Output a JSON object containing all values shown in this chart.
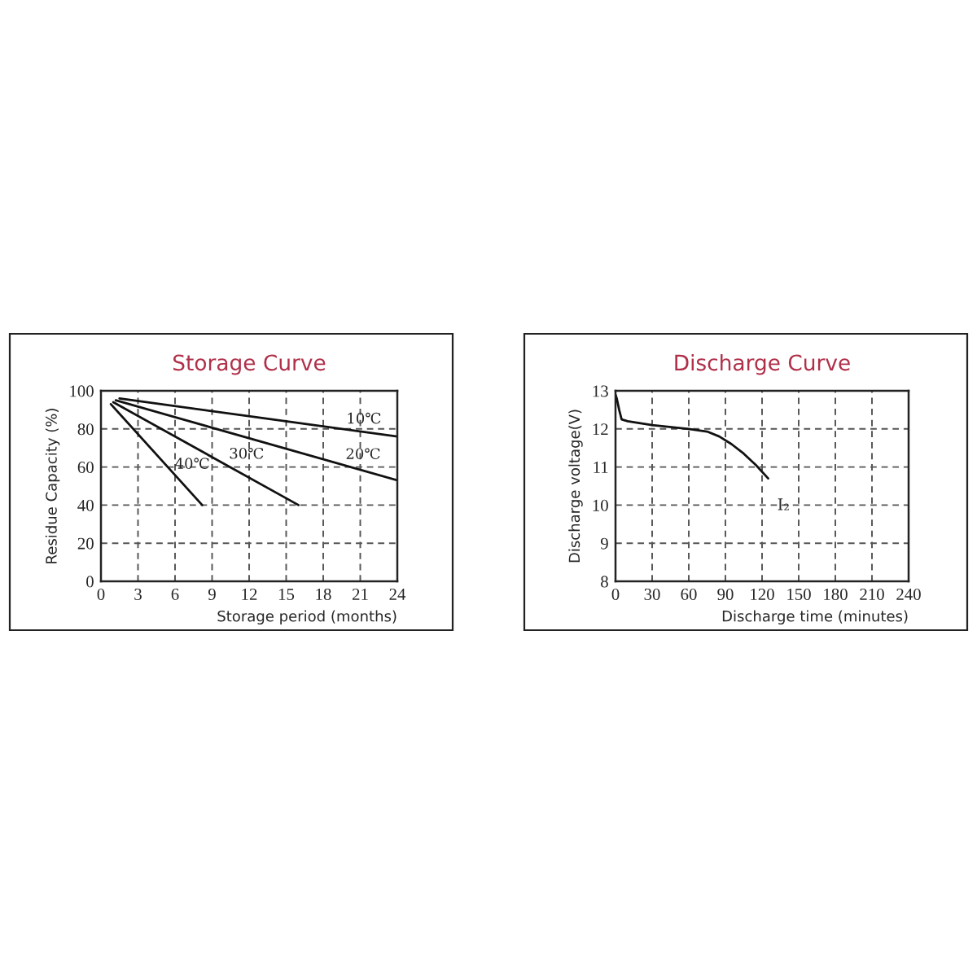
{
  "chart_data": [
    {
      "type": "line",
      "title": "Storage Curve",
      "xlabel": "Storage period (months)",
      "ylabel": "Residue Capacity (%)",
      "xlim": [
        0,
        24
      ],
      "ylim": [
        0,
        100
      ],
      "xticks": [
        0,
        3,
        6,
        9,
        12,
        15,
        18,
        21,
        24
      ],
      "yticks": [
        0,
        20,
        40,
        60,
        80,
        100
      ],
      "grid": true,
      "legend": false,
      "marker": "none",
      "line_style": "solid",
      "series": [
        {
          "name": "10℃",
          "color": "#111111",
          "x": [
            1.5,
            24
          ],
          "values": [
            96,
            76
          ]
        },
        {
          "name": "20℃",
          "color": "#111111",
          "x": [
            1.2,
            24
          ],
          "values": [
            95,
            53
          ]
        },
        {
          "name": "30℃",
          "color": "#111111",
          "x": [
            1,
            16
          ],
          "values": [
            94,
            40
          ]
        },
        {
          "name": "40℃",
          "color": "#111111",
          "x": [
            0.8,
            8.2
          ],
          "values": [
            93,
            40
          ]
        }
      ]
    },
    {
      "type": "line",
      "title": "Discharge Curve",
      "xlabel": "Discharge time (minutes)",
      "ylabel": "Discharge voltage(V)",
      "xlim": [
        0,
        240
      ],
      "ylim": [
        8,
        13
      ],
      "xticks": [
        0,
        30,
        60,
        90,
        120,
        150,
        180,
        210,
        240
      ],
      "yticks": [
        8,
        9,
        10,
        11,
        12,
        13
      ],
      "grid": true,
      "legend": false,
      "marker": "none",
      "line_style": "solid",
      "series": [
        {
          "name": "I₂",
          "color": "#111111",
          "x": [
            0,
            1,
            3,
            5,
            10,
            30,
            60,
            75,
            85,
            95,
            105,
            115,
            125
          ],
          "values": [
            12.9,
            12.8,
            12.5,
            12.25,
            12.2,
            12.1,
            12.0,
            11.93,
            11.8,
            11.6,
            11.35,
            11.05,
            10.7
          ]
        }
      ]
    }
  ]
}
